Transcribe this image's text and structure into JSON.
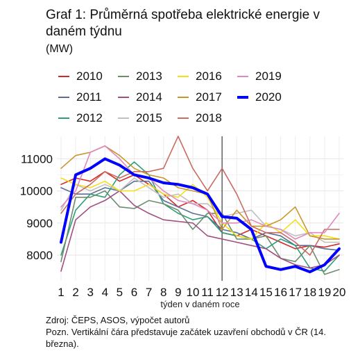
{
  "chart_data": {
    "type": "line",
    "title": "Graf 1: Průměrná spotřeba elektrické energie v daném týdnu",
    "subtitle": "(MW)",
    "xlabel": "týden v daném roce",
    "ylabel": "",
    "x": [
      1,
      2,
      3,
      4,
      5,
      6,
      7,
      8,
      9,
      10,
      11,
      12,
      13,
      14,
      15,
      16,
      17,
      18,
      19,
      20
    ],
    "xlim": [
      1,
      20
    ],
    "ylim": [
      7200,
      11700
    ],
    "yticks": [
      8000,
      9000,
      10000,
      11000
    ],
    "yticklabels": [
      "8000",
      "9000",
      "10000",
      "11000"
    ],
    "grid": true,
    "legend_position": "top",
    "vline": {
      "x": 12,
      "color": "#555555"
    },
    "series": [
      {
        "name": "2010",
        "color": "#d62728",
        "width": 1.6,
        "values": [
          10200,
          10400,
          10300,
          10600,
          10300,
          10500,
          10200,
          9900,
          9500,
          9700,
          9400,
          8700,
          8600,
          8800,
          8600,
          8400,
          8200,
          8300,
          8250,
          8350
        ]
      },
      {
        "name": "2011",
        "color": "#5a6e94",
        "width": 1.6,
        "values": [
          10100,
          9900,
          9900,
          10100,
          10000,
          10300,
          10300,
          9700,
          9500,
          9300,
          9200,
          8800,
          8700,
          8500,
          8700,
          8600,
          8300,
          8300,
          8200,
          8150
        ]
      },
      {
        "name": "2012",
        "color": "#2e9e7a",
        "width": 1.6,
        "values": [
          8000,
          9400,
          9900,
          9800,
          10500,
          10900,
          10500,
          9600,
          9300,
          9100,
          9200,
          8700,
          8600,
          8500,
          8200,
          8500,
          8300,
          7600,
          7500,
          8000
        ]
      },
      {
        "name": "2013",
        "color": "#6e8b6e",
        "width": 1.6,
        "values": [
          7800,
          9800,
          9800,
          10000,
          9500,
          9450,
          9700,
          9600,
          9400,
          8800,
          9300,
          9300,
          8500,
          8500,
          8600,
          7900,
          7800,
          8300,
          7400,
          7550
        ]
      },
      {
        "name": "2014",
        "color": "#a04e7e",
        "width": 1.6,
        "values": [
          7500,
          9100,
          9500,
          9700,
          10000,
          9550,
          9300,
          9100,
          9050,
          9000,
          8600,
          8500,
          8400,
          8300,
          8200,
          7900,
          7700,
          7600,
          7700,
          8000
        ]
      },
      {
        "name": "2015",
        "color": "#c0c0c0",
        "width": 1.6,
        "values": [
          9400,
          10200,
          10000,
          10200,
          10000,
          10400,
          10100,
          9800,
          9900,
          9600,
          9600,
          9200,
          9300,
          9400,
          8900,
          8800,
          8600,
          8700,
          8400,
          8400
        ]
      },
      {
        "name": "2016",
        "color": "#f2e01a",
        "width": 1.6,
        "values": [
          10400,
          10200,
          10100,
          10300,
          10000,
          10000,
          10200,
          9900,
          9800,
          10200,
          9800,
          9000,
          8600,
          8500,
          9000,
          8700,
          9100,
          8600,
          8600,
          8500
        ]
      },
      {
        "name": "2017",
        "color": "#c9952a",
        "width": 1.6,
        "values": [
          10700,
          11100,
          11200,
          11400,
          11100,
          10700,
          10500,
          10400,
          10100,
          10000,
          9900,
          8800,
          9400,
          8900,
          8900,
          9100,
          9500,
          8600,
          8500,
          8500
        ]
      },
      {
        "name": "2018",
        "color": "#c96b60",
        "width": 1.6,
        "values": [
          9300,
          9900,
          10200,
          10600,
          10400,
          10600,
          10600,
          10700,
          11700,
          10700,
          10000,
          10700,
          9900,
          8900,
          8700,
          8700,
          8400,
          8000,
          8800,
          8800
        ]
      },
      {
        "name": "2019",
        "color": "#e088c0",
        "width": 1.6,
        "values": [
          9500,
          10000,
          11200,
          11400,
          11000,
          10500,
          10400,
          10000,
          9700,
          9600,
          9400,
          9000,
          9000,
          9100,
          8900,
          8800,
          8500,
          8700,
          8700,
          9300
        ]
      },
      {
        "name": "2020",
        "color": "#0000ff",
        "width": 4,
        "values": [
          8400,
          10500,
          10700,
          11000,
          10800,
          10500,
          10400,
          10250,
          10200,
          10100,
          9900,
          9200,
          9150,
          8800,
          7650,
          7550,
          7650,
          7480,
          7700,
          8200
        ]
      }
    ]
  }
}
